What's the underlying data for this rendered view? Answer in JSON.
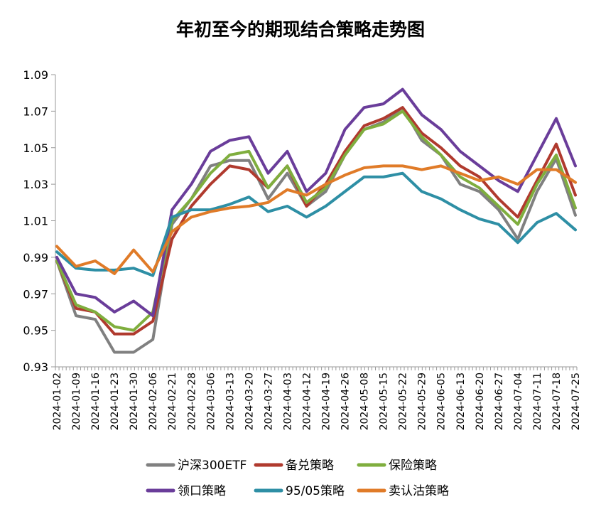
{
  "chart_data": {
    "type": "line",
    "title": "年初至今的期现结合策略走势图",
    "xlabel": "",
    "ylabel": "",
    "ylim": [
      0.93,
      1.09
    ],
    "yticks": [
      "0.93",
      "0.95",
      "0.97",
      "0.99",
      "1.01",
      "1.03",
      "1.05",
      "1.07",
      "1.09"
    ],
    "x": [
      "2024-01-02",
      "2024-01-09",
      "2024-01-16",
      "2024-01-23",
      "2024-01-30",
      "2024-02-06",
      "2024-02-21",
      "2024-02-28",
      "2024-03-06",
      "2024-03-13",
      "2024-03-20",
      "2024-03-27",
      "2024-04-03",
      "2024-04-12",
      "2024-04-19",
      "2024-04-26",
      "2024-05-08",
      "2024-05-15",
      "2024-05-22",
      "2024-05-29",
      "2024-06-05",
      "2024-06-13",
      "2024-06-20",
      "2024-06-27",
      "2024-07-04",
      "2024-07-11",
      "2024-07-18",
      "2024-07-25"
    ],
    "grid": false,
    "legend_position": "bottom",
    "series": [
      {
        "name": "沪深300ETF",
        "color": "#808080",
        "values": [
          0.988,
          0.958,
          0.956,
          0.938,
          0.938,
          0.945,
          1.008,
          1.022,
          1.04,
          1.043,
          1.043,
          1.022,
          1.036,
          1.018,
          1.026,
          1.046,
          1.06,
          1.064,
          1.072,
          1.054,
          1.046,
          1.03,
          1.026,
          1.016,
          1.0,
          1.026,
          1.044,
          1.013
        ]
      },
      {
        "name": "备兑策略",
        "color": "#B03A2E",
        "values": [
          0.988,
          0.962,
          0.96,
          0.948,
          0.948,
          0.955,
          1.0,
          1.018,
          1.03,
          1.04,
          1.038,
          1.028,
          1.04,
          1.018,
          1.03,
          1.048,
          1.062,
          1.066,
          1.072,
          1.058,
          1.05,
          1.04,
          1.034,
          1.022,
          1.012,
          1.032,
          1.052,
          1.024
        ]
      },
      {
        "name": "保险策略",
        "color": "#7FAE3E",
        "values": [
          0.988,
          0.964,
          0.96,
          0.952,
          0.95,
          0.96,
          1.01,
          1.022,
          1.036,
          1.046,
          1.048,
          1.028,
          1.04,
          1.02,
          1.028,
          1.046,
          1.06,
          1.063,
          1.07,
          1.056,
          1.046,
          1.034,
          1.028,
          1.018,
          1.008,
          1.03,
          1.046,
          1.017
        ]
      },
      {
        "name": "领口策略",
        "color": "#6A3D9A",
        "values": [
          0.99,
          0.97,
          0.968,
          0.96,
          0.966,
          0.958,
          1.016,
          1.03,
          1.048,
          1.054,
          1.056,
          1.036,
          1.048,
          1.026,
          1.036,
          1.06,
          1.072,
          1.074,
          1.082,
          1.068,
          1.06,
          1.048,
          1.04,
          1.032,
          1.026,
          1.046,
          1.066,
          1.04
        ]
      },
      {
        "name": "95/05策略",
        "color": "#2E8FA5",
        "values": [
          0.993,
          0.984,
          0.983,
          0.983,
          0.984,
          0.98,
          1.012,
          1.016,
          1.016,
          1.019,
          1.023,
          1.015,
          1.018,
          1.012,
          1.018,
          1.026,
          1.034,
          1.034,
          1.036,
          1.026,
          1.022,
          1.016,
          1.011,
          1.008,
          0.998,
          1.009,
          1.014,
          1.005
        ]
      },
      {
        "name": "卖认沽策略",
        "color": "#E07B28",
        "values": [
          0.996,
          0.985,
          0.988,
          0.981,
          0.994,
          0.982,
          1.004,
          1.012,
          1.015,
          1.017,
          1.018,
          1.02,
          1.027,
          1.024,
          1.03,
          1.035,
          1.039,
          1.04,
          1.04,
          1.038,
          1.04,
          1.036,
          1.032,
          1.034,
          1.03,
          1.038,
          1.038,
          1.031
        ]
      }
    ]
  }
}
